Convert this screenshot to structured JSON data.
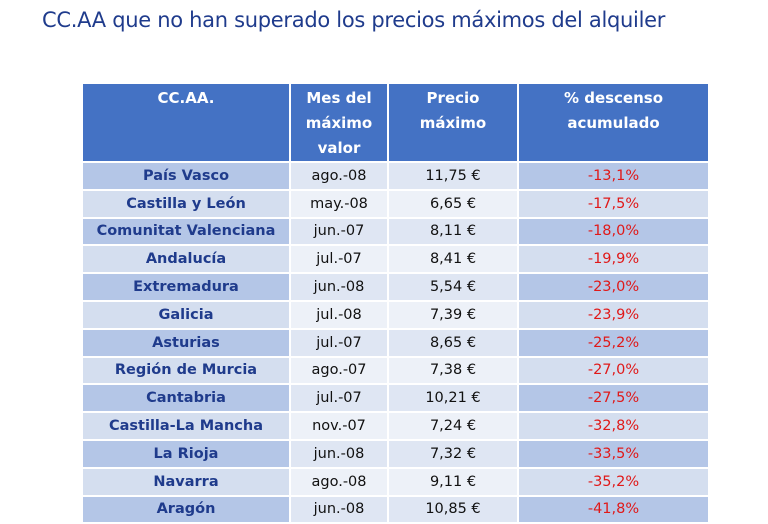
{
  "title": "CC.AA que no han superado los precios máximos del alquiler",
  "table": {
    "headers": [
      "CC.AA.",
      "Mes del máximo valor",
      "Precio máximo",
      "% descenso acumulado"
    ],
    "rows": [
      {
        "region": "País Vasco",
        "mes": "ago.-08",
        "precio": "11,75 €",
        "descenso": "-13,1%"
      },
      {
        "region": "Castilla y León",
        "mes": "may.-08",
        "precio": "6,65 €",
        "descenso": "-17,5%"
      },
      {
        "region": "Comunitat Valenciana",
        "mes": "jun.-07",
        "precio": "8,11 €",
        "descenso": "-18,0%"
      },
      {
        "region": "Andalucía",
        "mes": "jul.-07",
        "precio": "8,41 €",
        "descenso": "-19,9%"
      },
      {
        "region": "Extremadura",
        "mes": "jun.-08",
        "precio": "5,54 €",
        "descenso": "-23,0%"
      },
      {
        "region": "Galicia",
        "mes": "jul.-08",
        "precio": "7,39 €",
        "descenso": "-23,9%"
      },
      {
        "region": "Asturias",
        "mes": "jul.-07",
        "precio": "8,65 €",
        "descenso": "-25,2%"
      },
      {
        "region": "Región de Murcia",
        "mes": "ago.-07",
        "precio": "7,38 €",
        "descenso": "-27,0%"
      },
      {
        "region": "Cantabria",
        "mes": "jul.-07",
        "precio": "10,21 €",
        "descenso": "-27,5%"
      },
      {
        "region": "Castilla-La Mancha",
        "mes": "nov.-07",
        "precio": "7,24 €",
        "descenso": "-32,8%"
      },
      {
        "region": "La Rioja",
        "mes": "jun.-08",
        "precio": "7,32 €",
        "descenso": "-33,5%"
      },
      {
        "region": "Navarra",
        "mes": "ago.-08",
        "precio": "9,11 €",
        "descenso": "-35,2%"
      },
      {
        "region": "Aragón",
        "mes": "jun.-08",
        "precio": "10,85 €",
        "descenso": "-41,8%"
      }
    ]
  },
  "colors": {
    "title": "#1f3b8c",
    "header_bg": "#4472c4",
    "row_dark": "#b4c6e7",
    "row_light": "#d4deef",
    "negative": "#e01919"
  }
}
